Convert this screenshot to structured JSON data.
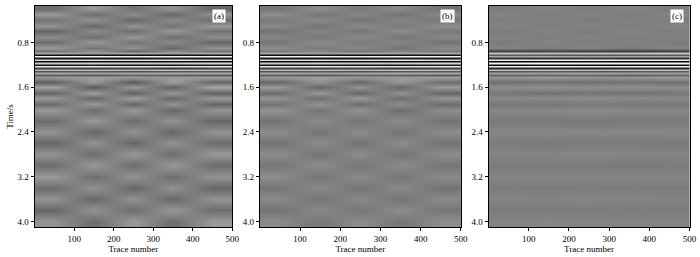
{
  "chart_data": [
    {
      "type": "heatmap",
      "annotation": "(a)",
      "x_label": "Trace number",
      "y_label": "Time/s",
      "x": [
        50,
        150,
        250,
        350,
        450
      ],
      "y": [
        0.2,
        0.3,
        0.4,
        0.5,
        0.6,
        0.7,
        0.8,
        0.9,
        0.96,
        0.99,
        1.02,
        1.05,
        1.08,
        1.11,
        1.14,
        1.17,
        1.2,
        1.23,
        1.26,
        1.29,
        1.32,
        1.35,
        1.38,
        1.41,
        1.5,
        1.6,
        1.7,
        1.8,
        1.9,
        2.0,
        2.2,
        2.4,
        2.6,
        2.8,
        3.0,
        3.2,
        3.4,
        3.6,
        3.8,
        4.0
      ],
      "z": [
        [
          0.15,
          -0.2,
          0.1,
          -0.15,
          0.2
        ],
        [
          -0.2,
          0.15,
          -0.1,
          0.2,
          -0.15
        ],
        [
          0.1,
          -0.15,
          0.2,
          -0.1,
          0.15
        ],
        [
          -0.15,
          0.2,
          -0.15,
          0.1,
          -0.2
        ],
        [
          0.2,
          -0.1,
          0.15,
          -0.2,
          0.1
        ],
        [
          -0.1,
          0.15,
          -0.2,
          0.15,
          -0.1
        ],
        [
          0.15,
          -0.2,
          0.1,
          -0.1,
          0.2
        ],
        [
          -0.2,
          0.1,
          -0.15,
          0.2,
          -0.15
        ],
        [
          0.1,
          -0.15,
          0.2,
          -0.1,
          0.1
        ],
        [
          -0.3,
          -0.2,
          -0.3,
          -0.25,
          -0.3
        ],
        [
          0.9,
          0.85,
          0.9,
          0.9,
          0.85
        ],
        [
          -0.9,
          -0.9,
          -0.85,
          -0.9,
          -0.9
        ],
        [
          0.8,
          0.85,
          0.8,
          0.75,
          0.8
        ],
        [
          -0.7,
          -0.75,
          -0.7,
          -0.8,
          -0.7
        ],
        [
          0.9,
          0.9,
          0.85,
          0.9,
          0.9
        ],
        [
          -0.6,
          -0.65,
          -0.6,
          -0.6,
          -0.7
        ],
        [
          0.85,
          0.8,
          0.9,
          0.85,
          0.8
        ],
        [
          -0.8,
          -0.85,
          -0.8,
          -0.75,
          -0.8
        ],
        [
          0.5,
          0.55,
          0.5,
          0.6,
          0.5
        ],
        [
          -0.4,
          -0.45,
          -0.4,
          -0.5,
          -0.4
        ],
        [
          0.35,
          0.3,
          0.4,
          0.35,
          0.3
        ],
        [
          -0.3,
          -0.25,
          -0.3,
          -0.35,
          -0.3
        ],
        [
          0.25,
          0.3,
          0.2,
          0.25,
          0.3
        ],
        [
          -0.2,
          -0.25,
          -0.2,
          -0.2,
          -0.25
        ],
        [
          0.25,
          -0.2,
          0.3,
          -0.25,
          0.2
        ],
        [
          -0.25,
          0.3,
          -0.2,
          0.25,
          -0.3
        ],
        [
          0.2,
          -0.25,
          0.25,
          -0.2,
          0.25
        ],
        [
          -0.2,
          0.2,
          -0.25,
          0.2,
          -0.2
        ],
        [
          0.15,
          -0.2,
          0.2,
          -0.15,
          0.2
        ],
        [
          -0.2,
          0.15,
          -0.2,
          0.2,
          -0.15
        ],
        [
          0.15,
          -0.2,
          0.15,
          -0.15,
          0.2
        ],
        [
          -0.15,
          0.2,
          -0.15,
          0.2,
          -0.15
        ],
        [
          0.2,
          -0.15,
          0.2,
          -0.15,
          0.15
        ],
        [
          -0.15,
          0.15,
          -0.2,
          0.15,
          -0.2
        ],
        [
          0.15,
          -0.2,
          0.15,
          -0.2,
          0.15
        ],
        [
          -0.2,
          0.15,
          -0.15,
          0.15,
          -0.15
        ],
        [
          0.15,
          -0.15,
          0.2,
          -0.15,
          0.2
        ],
        [
          -0.15,
          0.2,
          -0.15,
          0.2,
          -0.15
        ],
        [
          0.2,
          -0.15,
          0.15,
          -0.2,
          0.15
        ],
        [
          -0.15,
          0.15,
          -0.2,
          0.15,
          -0.2
        ]
      ],
      "zlim": [
        -1,
        1
      ],
      "xlim": [
        0,
        500
      ],
      "xticks": [
        100,
        200,
        300,
        400,
        500
      ],
      "ylim": [
        4.1,
        0.15
      ],
      "yticks": [
        0.8,
        1.6,
        2.4,
        3.2,
        {
          "value": 4,
          "label": "4.0"
        }
      ],
      "grid": false
    },
    {
      "type": "heatmap",
      "annotation": "(b)",
      "x_label": "Trace number",
      "x": [
        50,
        150,
        250,
        350,
        450
      ],
      "y": [
        0.2,
        0.3,
        0.4,
        0.5,
        0.6,
        0.7,
        0.8,
        0.9,
        0.96,
        0.99,
        1.02,
        1.05,
        1.08,
        1.11,
        1.14,
        1.17,
        1.2,
        1.23,
        1.26,
        1.29,
        1.32,
        1.35,
        1.38,
        1.41,
        1.5,
        1.6,
        1.7,
        1.8,
        1.9,
        2.0,
        2.2,
        2.4,
        2.6,
        2.8,
        3.0,
        3.2,
        3.4,
        3.6,
        3.8,
        4.0
      ],
      "z": [
        [
          0.08,
          -0.1,
          0.05,
          -0.08,
          0.1
        ],
        [
          -0.1,
          0.08,
          -0.05,
          0.1,
          -0.08
        ],
        [
          0.05,
          -0.08,
          0.1,
          -0.05,
          0.08
        ],
        [
          -0.08,
          0.1,
          -0.08,
          0.05,
          -0.1
        ],
        [
          0.1,
          -0.05,
          0.08,
          -0.1,
          0.05
        ],
        [
          -0.05,
          0.08,
          -0.1,
          0.08,
          -0.05
        ],
        [
          0.08,
          -0.1,
          0.05,
          -0.05,
          0.1
        ],
        [
          -0.1,
          0.05,
          -0.08,
          0.1,
          -0.08
        ],
        [
          0.05,
          -0.08,
          0.1,
          -0.05,
          0.05
        ],
        [
          -0.3,
          -0.2,
          -0.3,
          -0.25,
          -0.3
        ],
        [
          0.9,
          0.85,
          0.9,
          0.9,
          0.85
        ],
        [
          -0.9,
          -0.9,
          -0.85,
          -0.9,
          -0.9
        ],
        [
          0.8,
          0.85,
          0.8,
          0.75,
          0.8
        ],
        [
          -0.7,
          -0.75,
          -0.7,
          -0.8,
          -0.7
        ],
        [
          0.9,
          0.9,
          0.85,
          0.9,
          0.9
        ],
        [
          -0.6,
          -0.65,
          -0.6,
          -0.6,
          -0.7
        ],
        [
          0.85,
          0.8,
          0.9,
          0.85,
          0.8
        ],
        [
          -0.8,
          -0.85,
          -0.8,
          -0.75,
          -0.8
        ],
        [
          0.5,
          0.55,
          0.5,
          0.6,
          0.5
        ],
        [
          -0.4,
          -0.45,
          -0.4,
          -0.5,
          -0.4
        ],
        [
          0.35,
          0.3,
          0.4,
          0.35,
          0.3
        ],
        [
          -0.3,
          -0.25,
          -0.3,
          -0.35,
          -0.3
        ],
        [
          0.25,
          0.3,
          0.2,
          0.25,
          0.3
        ],
        [
          -0.2,
          -0.25,
          -0.2,
          -0.2,
          -0.25
        ],
        [
          0.2,
          -0.15,
          0.2,
          -0.2,
          0.15
        ],
        [
          -0.2,
          0.2,
          -0.15,
          0.2,
          -0.2
        ],
        [
          0.15,
          -0.2,
          0.2,
          -0.15,
          0.2
        ],
        [
          -0.15,
          0.15,
          -0.2,
          0.15,
          -0.15
        ],
        [
          0.1,
          -0.15,
          0.15,
          -0.1,
          0.15
        ],
        [
          -0.15,
          0.1,
          -0.15,
          0.15,
          -0.1
        ],
        [
          0.1,
          -0.1,
          0.1,
          -0.1,
          0.1
        ],
        [
          -0.1,
          0.1,
          -0.1,
          0.1,
          -0.1
        ],
        [
          0.1,
          -0.1,
          0.1,
          -0.1,
          0.1
        ],
        [
          -0.1,
          0.1,
          -0.1,
          0.1,
          -0.1
        ],
        [
          0.08,
          -0.1,
          0.08,
          -0.1,
          0.08
        ],
        [
          -0.1,
          0.08,
          -0.08,
          0.08,
          -0.08
        ],
        [
          0.08,
          -0.08,
          0.1,
          -0.08,
          0.1
        ],
        [
          -0.08,
          0.1,
          -0.08,
          0.1,
          -0.08
        ],
        [
          0.1,
          -0.08,
          0.08,
          -0.1,
          0.08
        ],
        [
          -0.08,
          0.08,
          -0.1,
          0.08,
          -0.1
        ]
      ],
      "zlim": [
        -1,
        1
      ],
      "xlim": [
        0,
        500
      ],
      "xticks": [
        100,
        200,
        300,
        400,
        500
      ],
      "ylim": [
        4.1,
        0.15
      ],
      "yticks": [
        0.8,
        1.6,
        2.4,
        3.2,
        {
          "value": 4,
          "label": "4.0"
        }
      ],
      "grid": false
    },
    {
      "type": "heatmap",
      "annotation": "(c)",
      "x_label": "Trace number",
      "x": [
        50,
        150,
        250,
        350,
        450
      ],
      "y": [
        0.2,
        0.3,
        0.4,
        0.5,
        0.6,
        0.7,
        0.8,
        0.9,
        0.96,
        0.99,
        1.02,
        1.05,
        1.08,
        1.11,
        1.14,
        1.17,
        1.2,
        1.23,
        1.26,
        1.29,
        1.32,
        1.35,
        1.38,
        1.41,
        1.5,
        1.6,
        1.7,
        1.8,
        1.9,
        2.0,
        2.2,
        2.4,
        2.6,
        2.8,
        3.0,
        3.2,
        3.4,
        3.6,
        3.8,
        4.0
      ],
      "z": [
        [
          0.03,
          -0.03,
          0.02,
          -0.03,
          0.03
        ],
        [
          -0.03,
          0.03,
          -0.02,
          0.03,
          -0.03
        ],
        [
          0.02,
          -0.03,
          0.03,
          -0.02,
          0.03
        ],
        [
          -0.03,
          0.03,
          -0.03,
          0.02,
          -0.03
        ],
        [
          0.03,
          -0.02,
          0.03,
          -0.03,
          0.02
        ],
        [
          -0.02,
          0.03,
          -0.03,
          0.03,
          -0.02
        ],
        [
          0.03,
          -0.03,
          0.02,
          -0.02,
          0.03
        ],
        [
          -0.03,
          0.02,
          -0.03,
          0.03,
          -0.03
        ],
        [
          0.5,
          0.45,
          0.5,
          0.55,
          0.5
        ],
        [
          -0.5,
          -0.45,
          -0.5,
          -0.5,
          -0.55
        ],
        [
          0.3,
          0.3,
          0.35,
          0.3,
          0.3
        ],
        [
          -0.3,
          -0.35,
          -0.3,
          -0.3,
          -0.3
        ],
        [
          0.6,
          0.6,
          0.55,
          0.6,
          0.6
        ],
        [
          -0.85,
          -0.85,
          -0.9,
          -0.85,
          -0.85
        ],
        [
          0.95,
          0.95,
          0.9,
          0.95,
          0.95
        ],
        [
          -0.9,
          -0.95,
          -0.9,
          -0.9,
          -0.9
        ],
        [
          0.95,
          0.9,
          0.95,
          0.95,
          0.9
        ],
        [
          -0.85,
          -0.85,
          -0.8,
          -0.85,
          -0.85
        ],
        [
          0.7,
          0.7,
          0.75,
          0.7,
          0.7
        ],
        [
          -0.5,
          -0.5,
          -0.45,
          -0.5,
          -0.5
        ],
        [
          0.35,
          0.3,
          0.35,
          0.35,
          0.3
        ],
        [
          -0.25,
          -0.25,
          -0.3,
          -0.25,
          -0.25
        ],
        [
          0.2,
          0.2,
          0.2,
          0.25,
          0.2
        ],
        [
          -0.15,
          -0.2,
          -0.15,
          -0.15,
          -0.2
        ],
        [
          0.12,
          0.1,
          0.12,
          0.1,
          0.12
        ],
        [
          -0.1,
          -0.12,
          -0.1,
          -0.12,
          -0.1
        ],
        [
          0.08,
          0.1,
          0.08,
          0.1,
          0.08
        ],
        [
          -0.08,
          -0.08,
          -0.1,
          -0.08,
          -0.08
        ],
        [
          0.06,
          0.08,
          0.06,
          0.06,
          0.08
        ],
        [
          -0.06,
          -0.06,
          -0.08,
          -0.06,
          -0.06
        ],
        [
          0.05,
          0.05,
          0.06,
          0.05,
          0.05
        ],
        [
          -0.05,
          -0.05,
          -0.05,
          -0.06,
          -0.05
        ],
        [
          0.04,
          0.05,
          0.04,
          0.04,
          0.05
        ],
        [
          -0.04,
          -0.04,
          -0.05,
          -0.04,
          -0.04
        ],
        [
          0.04,
          0.04,
          0.04,
          0.05,
          0.04
        ],
        [
          -0.04,
          -0.05,
          -0.04,
          -0.04,
          -0.04
        ],
        [
          0.03,
          0.04,
          0.03,
          0.03,
          0.04
        ],
        [
          -0.03,
          -0.03,
          -0.04,
          -0.03,
          -0.03
        ],
        [
          0.03,
          0.03,
          0.03,
          0.04,
          0.03
        ],
        [
          -0.03,
          -0.04,
          -0.03,
          -0.03,
          -0.03
        ]
      ],
      "zlim": [
        -1,
        1
      ],
      "xlim": [
        0,
        500
      ],
      "xticks": [
        100,
        200,
        300,
        400,
        500
      ],
      "ylim": [
        4.1,
        0.15
      ],
      "yticks": [
        0.8,
        1.6,
        2.4,
        3.2,
        {
          "value": 4,
          "label": "4.0"
        }
      ],
      "grid": false
    }
  ]
}
